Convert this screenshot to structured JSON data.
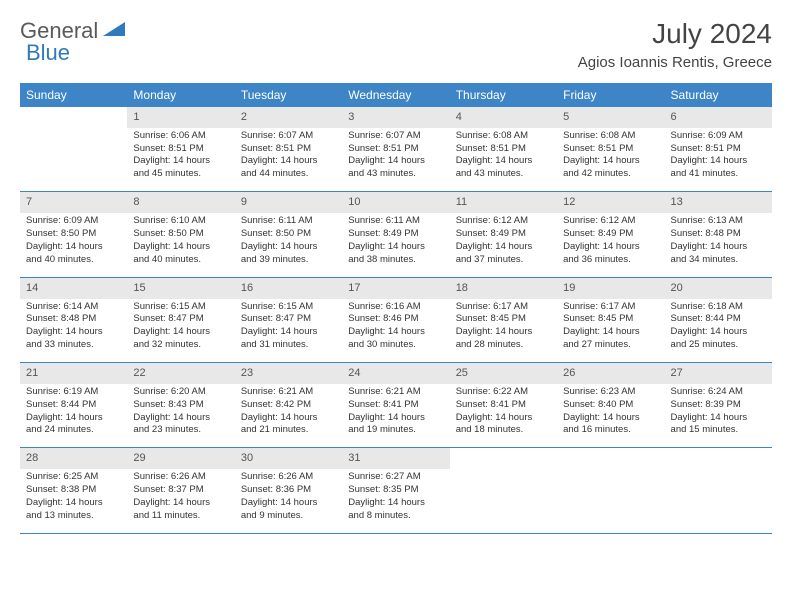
{
  "logo": {
    "text1": "General",
    "text2": "Blue"
  },
  "title": "July 2024",
  "location": "Agios Ioannis Rentis, Greece",
  "colors": {
    "header_bg": "#3d85c6",
    "header_fg": "#ffffff",
    "daynum_bg": "#e8e8e8",
    "rule": "#3d85c6",
    "logo_gray": "#5a5a5a",
    "logo_blue": "#2f79bd"
  },
  "day_headers": [
    "Sunday",
    "Monday",
    "Tuesday",
    "Wednesday",
    "Thursday",
    "Friday",
    "Saturday"
  ],
  "weeks": [
    {
      "nums": [
        "",
        "1",
        "2",
        "3",
        "4",
        "5",
        "6"
      ],
      "cells": [
        null,
        {
          "sunrise": "Sunrise: 6:06 AM",
          "sunset": "Sunset: 8:51 PM",
          "day1": "Daylight: 14 hours",
          "day2": "and 45 minutes."
        },
        {
          "sunrise": "Sunrise: 6:07 AM",
          "sunset": "Sunset: 8:51 PM",
          "day1": "Daylight: 14 hours",
          "day2": "and 44 minutes."
        },
        {
          "sunrise": "Sunrise: 6:07 AM",
          "sunset": "Sunset: 8:51 PM",
          "day1": "Daylight: 14 hours",
          "day2": "and 43 minutes."
        },
        {
          "sunrise": "Sunrise: 6:08 AM",
          "sunset": "Sunset: 8:51 PM",
          "day1": "Daylight: 14 hours",
          "day2": "and 43 minutes."
        },
        {
          "sunrise": "Sunrise: 6:08 AM",
          "sunset": "Sunset: 8:51 PM",
          "day1": "Daylight: 14 hours",
          "day2": "and 42 minutes."
        },
        {
          "sunrise": "Sunrise: 6:09 AM",
          "sunset": "Sunset: 8:51 PM",
          "day1": "Daylight: 14 hours",
          "day2": "and 41 minutes."
        }
      ]
    },
    {
      "nums": [
        "7",
        "8",
        "9",
        "10",
        "11",
        "12",
        "13"
      ],
      "cells": [
        {
          "sunrise": "Sunrise: 6:09 AM",
          "sunset": "Sunset: 8:50 PM",
          "day1": "Daylight: 14 hours",
          "day2": "and 40 minutes."
        },
        {
          "sunrise": "Sunrise: 6:10 AM",
          "sunset": "Sunset: 8:50 PM",
          "day1": "Daylight: 14 hours",
          "day2": "and 40 minutes."
        },
        {
          "sunrise": "Sunrise: 6:11 AM",
          "sunset": "Sunset: 8:50 PM",
          "day1": "Daylight: 14 hours",
          "day2": "and 39 minutes."
        },
        {
          "sunrise": "Sunrise: 6:11 AM",
          "sunset": "Sunset: 8:49 PM",
          "day1": "Daylight: 14 hours",
          "day2": "and 38 minutes."
        },
        {
          "sunrise": "Sunrise: 6:12 AM",
          "sunset": "Sunset: 8:49 PM",
          "day1": "Daylight: 14 hours",
          "day2": "and 37 minutes."
        },
        {
          "sunrise": "Sunrise: 6:12 AM",
          "sunset": "Sunset: 8:49 PM",
          "day1": "Daylight: 14 hours",
          "day2": "and 36 minutes."
        },
        {
          "sunrise": "Sunrise: 6:13 AM",
          "sunset": "Sunset: 8:48 PM",
          "day1": "Daylight: 14 hours",
          "day2": "and 34 minutes."
        }
      ]
    },
    {
      "nums": [
        "14",
        "15",
        "16",
        "17",
        "18",
        "19",
        "20"
      ],
      "cells": [
        {
          "sunrise": "Sunrise: 6:14 AM",
          "sunset": "Sunset: 8:48 PM",
          "day1": "Daylight: 14 hours",
          "day2": "and 33 minutes."
        },
        {
          "sunrise": "Sunrise: 6:15 AM",
          "sunset": "Sunset: 8:47 PM",
          "day1": "Daylight: 14 hours",
          "day2": "and 32 minutes."
        },
        {
          "sunrise": "Sunrise: 6:15 AM",
          "sunset": "Sunset: 8:47 PM",
          "day1": "Daylight: 14 hours",
          "day2": "and 31 minutes."
        },
        {
          "sunrise": "Sunrise: 6:16 AM",
          "sunset": "Sunset: 8:46 PM",
          "day1": "Daylight: 14 hours",
          "day2": "and 30 minutes."
        },
        {
          "sunrise": "Sunrise: 6:17 AM",
          "sunset": "Sunset: 8:45 PM",
          "day1": "Daylight: 14 hours",
          "day2": "and 28 minutes."
        },
        {
          "sunrise": "Sunrise: 6:17 AM",
          "sunset": "Sunset: 8:45 PM",
          "day1": "Daylight: 14 hours",
          "day2": "and 27 minutes."
        },
        {
          "sunrise": "Sunrise: 6:18 AM",
          "sunset": "Sunset: 8:44 PM",
          "day1": "Daylight: 14 hours",
          "day2": "and 25 minutes."
        }
      ]
    },
    {
      "nums": [
        "21",
        "22",
        "23",
        "24",
        "25",
        "26",
        "27"
      ],
      "cells": [
        {
          "sunrise": "Sunrise: 6:19 AM",
          "sunset": "Sunset: 8:44 PM",
          "day1": "Daylight: 14 hours",
          "day2": "and 24 minutes."
        },
        {
          "sunrise": "Sunrise: 6:20 AM",
          "sunset": "Sunset: 8:43 PM",
          "day1": "Daylight: 14 hours",
          "day2": "and 23 minutes."
        },
        {
          "sunrise": "Sunrise: 6:21 AM",
          "sunset": "Sunset: 8:42 PM",
          "day1": "Daylight: 14 hours",
          "day2": "and 21 minutes."
        },
        {
          "sunrise": "Sunrise: 6:21 AM",
          "sunset": "Sunset: 8:41 PM",
          "day1": "Daylight: 14 hours",
          "day2": "and 19 minutes."
        },
        {
          "sunrise": "Sunrise: 6:22 AM",
          "sunset": "Sunset: 8:41 PM",
          "day1": "Daylight: 14 hours",
          "day2": "and 18 minutes."
        },
        {
          "sunrise": "Sunrise: 6:23 AM",
          "sunset": "Sunset: 8:40 PM",
          "day1": "Daylight: 14 hours",
          "day2": "and 16 minutes."
        },
        {
          "sunrise": "Sunrise: 6:24 AM",
          "sunset": "Sunset: 8:39 PM",
          "day1": "Daylight: 14 hours",
          "day2": "and 15 minutes."
        }
      ]
    },
    {
      "nums": [
        "28",
        "29",
        "30",
        "31",
        "",
        "",
        ""
      ],
      "cells": [
        {
          "sunrise": "Sunrise: 6:25 AM",
          "sunset": "Sunset: 8:38 PM",
          "day1": "Daylight: 14 hours",
          "day2": "and 13 minutes."
        },
        {
          "sunrise": "Sunrise: 6:26 AM",
          "sunset": "Sunset: 8:37 PM",
          "day1": "Daylight: 14 hours",
          "day2": "and 11 minutes."
        },
        {
          "sunrise": "Sunrise: 6:26 AM",
          "sunset": "Sunset: 8:36 PM",
          "day1": "Daylight: 14 hours",
          "day2": "and 9 minutes."
        },
        {
          "sunrise": "Sunrise: 6:27 AM",
          "sunset": "Sunset: 8:35 PM",
          "day1": "Daylight: 14 hours",
          "day2": "and 8 minutes."
        },
        null,
        null,
        null
      ]
    }
  ]
}
